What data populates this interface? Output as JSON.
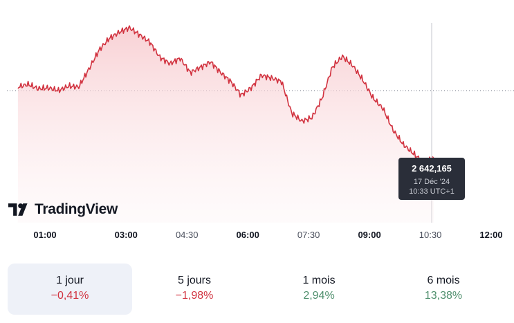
{
  "brand": {
    "name": "TradingView",
    "icon": "tradingview-logo-icon"
  },
  "tooltip": {
    "value": "2 642,165",
    "date": "17 Déc '24",
    "time": "10:33 UTC+1"
  },
  "colors": {
    "line": "#d1323f",
    "fill_top": "#f7c9cd",
    "tooltip_bg": "#2a2e39",
    "negative": "#d1323f",
    "positive": "#4f8f6d"
  },
  "chart_data": {
    "type": "area",
    "x_ticks": [
      {
        "label": "01:00",
        "bold": true
      },
      {
        "label": "03:00",
        "bold": true
      },
      {
        "label": "04:30",
        "bold": false
      },
      {
        "label": "06:00",
        "bold": true
      },
      {
        "label": "07:30",
        "bold": false
      },
      {
        "label": "09:00",
        "bold": true
      },
      {
        "label": "10:30",
        "bold": false
      },
      {
        "label": "12:00",
        "bold": true
      }
    ],
    "x_range": [
      "00:20",
      "12:00"
    ],
    "reference_line": "previous close (dotted)",
    "crosshair_time": "10:33",
    "series": [
      {
        "x": [
          "00:20",
          "00:35",
          "00:50",
          "01:05",
          "01:20",
          "01:35",
          "01:50",
          "02:05",
          "02:20",
          "02:35",
          "02:50",
          "03:05",
          "03:20",
          "03:35",
          "03:50",
          "04:05",
          "04:20",
          "04:35",
          "04:50",
          "05:05",
          "05:20",
          "05:35",
          "05:50",
          "06:05",
          "06:20",
          "06:35",
          "06:50",
          "07:05",
          "07:20",
          "07:35",
          "07:50",
          "08:05",
          "08:20",
          "08:35",
          "08:50",
          "09:05",
          "09:20",
          "09:35",
          "09:50",
          "10:05",
          "10:20",
          "10:35"
        ],
        "values": [
          0.04,
          0.07,
          0.02,
          0.03,
          0.0,
          0.05,
          0.04,
          0.24,
          0.45,
          0.58,
          0.65,
          0.7,
          0.62,
          0.54,
          0.37,
          0.3,
          0.36,
          0.2,
          0.26,
          0.32,
          0.2,
          0.1,
          -0.05,
          0.03,
          0.17,
          0.14,
          0.1,
          -0.25,
          -0.34,
          -0.3,
          -0.08,
          0.26,
          0.38,
          0.28,
          0.12,
          -0.08,
          -0.2,
          -0.44,
          -0.6,
          -0.7,
          -0.8,
          -0.75
        ]
      }
    ]
  },
  "periods": [
    {
      "label": "1 jour",
      "change": "−0,41%",
      "sign": "neg",
      "active": true
    },
    {
      "label": "5 jours",
      "change": "−1,98%",
      "sign": "neg",
      "active": false
    },
    {
      "label": "1 mois",
      "change": "2,94%",
      "sign": "pos",
      "active": false
    },
    {
      "label": "6 mois",
      "change": "13,38%",
      "sign": "pos",
      "active": false
    }
  ]
}
